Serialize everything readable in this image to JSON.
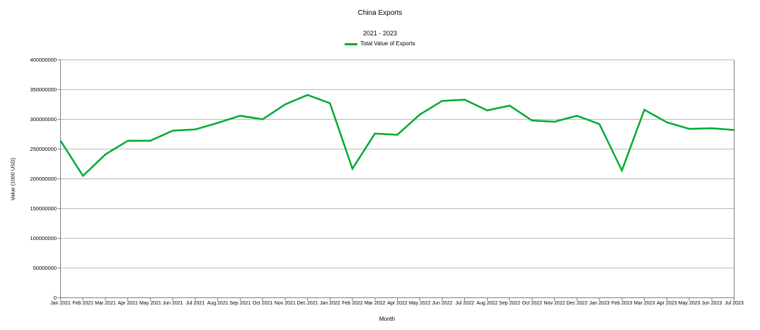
{
  "chart": {
    "title": "China Exports",
    "subtitle": "2021 - 2023",
    "legend": [
      {
        "label": "Total Value of Exports",
        "color": "#00a933"
      }
    ],
    "x_axis_title": "Month",
    "y_axis_title": "Value (1000 USD)"
  },
  "chart_data": {
    "type": "line",
    "title": "China Exports",
    "subtitle": "2021 - 2023",
    "xlabel": "Month",
    "ylabel": "Value (1000 USD)",
    "legend_position": "top",
    "grid": "horizontal",
    "ylim": [
      0,
      400000000
    ],
    "y_ticks": [
      0,
      50000000,
      100000000,
      150000000,
      200000000,
      250000000,
      300000000,
      350000000,
      400000000
    ],
    "categories": [
      "Jan 2021",
      "Feb 2021",
      "Mar 2021",
      "Apr 2021",
      "May 2021",
      "Jun 2021",
      "Jul 2021",
      "Aug 2021",
      "Sep 2021",
      "Oct 2021",
      "Nov 2021",
      "Dec 2021",
      "Jan 2022",
      "Feb 2022",
      "Mar 2022",
      "Apr 2022",
      "May 2022",
      "Jun 2022",
      "Jul 2022",
      "Aug 2022",
      "Sep 2022",
      "Oct 2022",
      "Nov 2022",
      "Dec 2022",
      "Jan 2023",
      "Feb 2023",
      "Mar 2023",
      "Apr 2023",
      "May 2023",
      "Jun 2023",
      "Jul 2023"
    ],
    "series": [
      {
        "name": "Total Value of Exports",
        "color": "#00a933",
        "values": [
          264000000,
          205000000,
          241000000,
          264000000,
          264000000,
          281000000,
          283000000,
          294000000,
          306000000,
          300000000,
          325000000,
          341000000,
          327000000,
          217000000,
          276000000,
          274000000,
          308000000,
          331000000,
          333000000,
          315000000,
          323000000,
          298000000,
          296000000,
          306000000,
          292000000,
          214000000,
          316000000,
          295000000,
          284000000,
          285000000,
          282000000
        ]
      }
    ],
    "colors": {
      "background": "#ffffff",
      "gridline": "#b9b9b9",
      "axis": "#7f7f7f",
      "text": "#000000",
      "series": "#00a933"
    }
  }
}
